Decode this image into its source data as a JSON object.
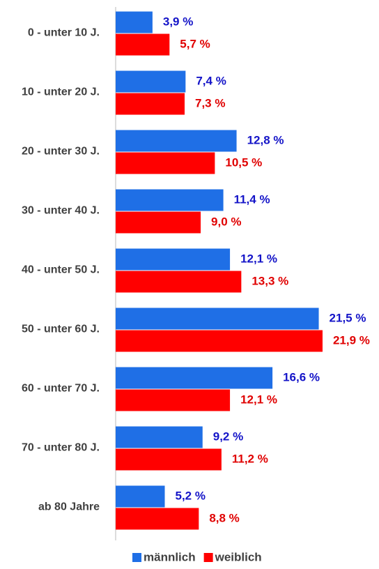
{
  "chart_data": {
    "type": "bar",
    "orientation": "horizontal",
    "categories": [
      "0 - unter 10 J.",
      "10 - unter 20 J.",
      "20 - unter 30 J.",
      "30 - unter 40 J.",
      "40 - unter 50 J.",
      "50 - unter 60 J.",
      "60 - unter 70 J.",
      "70 - unter 80 J.",
      "ab 80 Jahre"
    ],
    "series": [
      {
        "name": "männlich",
        "color": "#1f6fe6",
        "values": [
          3.9,
          7.4,
          12.8,
          11.4,
          12.1,
          21.5,
          16.6,
          9.2,
          5.2
        ],
        "value_labels": [
          "3,9 %",
          "7,4 %",
          "12,8 %",
          "11,4 %",
          "12,1 %",
          "21,5 %",
          "16,6 %",
          "9,2 %",
          "5,2 %"
        ]
      },
      {
        "name": "weiblich",
        "color": "#ff0000",
        "values": [
          5.7,
          7.3,
          10.5,
          9.0,
          13.3,
          21.9,
          12.1,
          11.2,
          8.8
        ],
        "value_labels": [
          "5,7 %",
          "7,3 %",
          "10,5 %",
          "9,0 %",
          "13,3 %",
          "21,9 %",
          "12,1 %",
          "11,2 %",
          "8,8 %"
        ]
      }
    ],
    "xlim": [
      0,
      25
    ],
    "legend": "bottom"
  }
}
